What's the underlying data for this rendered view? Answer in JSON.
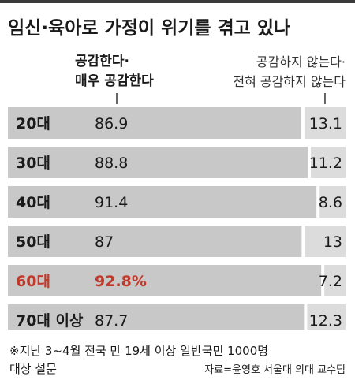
{
  "title": "임신·육아로 가정이 위기를 겪고 있나",
  "legend": {
    "agree_lines": [
      "공감한다·",
      "매우 공감한다"
    ],
    "disagree_lines": [
      "공감하지 않는다·",
      "전혀 공감하지 않는다"
    ]
  },
  "chart_data": {
    "type": "bar",
    "stacked": true,
    "orientation": "horizontal",
    "categories": [
      "20대",
      "30대",
      "40대",
      "50대",
      "60대",
      "70대 이상"
    ],
    "series": [
      {
        "name": "공감한다·매우 공감한다",
        "values": [
          86.9,
          88.8,
          91.4,
          87,
          92.8,
          87.7
        ],
        "color": "#c8c8c8"
      },
      {
        "name": "공감하지 않는다·전혀 공감하지 않는다",
        "values": [
          13.1,
          11.2,
          8.6,
          13,
          7.2,
          12.3
        ],
        "color": "#dcdcdc"
      }
    ],
    "value_labels_agree": [
      "86.9",
      "88.8",
      "91.4",
      "87",
      "92.8%",
      "87.7"
    ],
    "value_labels_disagree": [
      "13.1",
      "11.2",
      "8.6",
      "13",
      "7.2",
      "12.3"
    ],
    "highlight_index": 4,
    "highlight_color": "#c0392b",
    "xlim": [
      0,
      100
    ]
  },
  "footnote_lines": [
    "※지난 3~4월 전국 만 19세 이상 일반국민 1000명",
    "대상 설문"
  ],
  "source": "자료=윤영호 서울대 의대 교수팀"
}
